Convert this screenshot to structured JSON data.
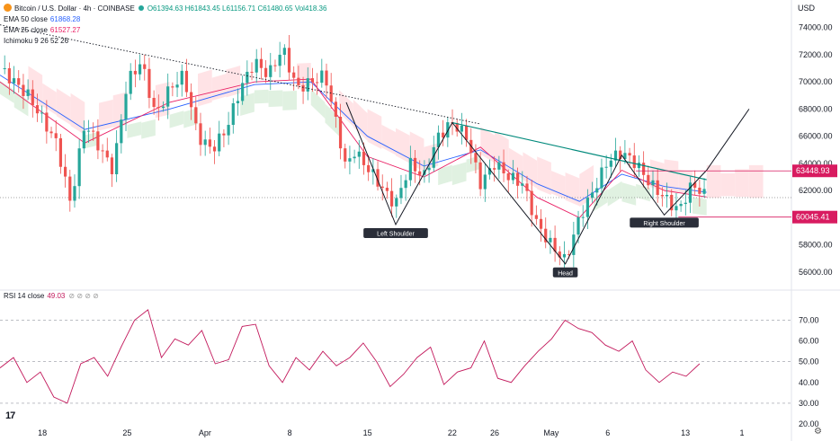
{
  "header": {
    "symbol": "Bitcoin / U.S. Dollar · 4h · COINBASE",
    "ohlc": "O61394.63 H61843.45 L61156.71 C61480.65 Vol418.36",
    "ema50_label": "EMA 50 close",
    "ema50_value": "61868.28",
    "ema25_label": "EMA 25 close",
    "ema25_value": "61527.27",
    "ichimoku_label": "Ichimoku 9 26 52 26",
    "rsi_label": "RSI 14 close",
    "rsi_value": "49.03",
    "currency": "USD"
  },
  "colors": {
    "up": "#26a69a",
    "down": "#ef5350",
    "ema50": "#2962ff",
    "ema25": "#e91e63",
    "cloud_bull": "#c8e6c9",
    "cloud_bear": "#ffcdd2",
    "rsi": "#c2185b",
    "resistance": "#d81b60",
    "support": "#d81b60",
    "pattern": "#131722",
    "neckline": "#00897b"
  },
  "chart_data": [
    {
      "type": "candlestick",
      "title": "Bitcoin / U.S. Dollar · 4h · COINBASE",
      "y_axis": {
        "min": 55000,
        "max": 75500,
        "ticks": [
          56000,
          58000,
          60000,
          62000,
          64000,
          66000,
          68000,
          70000,
          72000,
          74000
        ]
      },
      "x_axis": {
        "labels": [
          "18",
          "25",
          "Apr",
          "8",
          "15",
          "22",
          "26",
          "May",
          "6",
          "13",
          "1"
        ]
      },
      "price_path": [
        [
          0,
          71000
        ],
        [
          2,
          69000
        ],
        [
          4,
          65500
        ],
        [
          5,
          61000
        ],
        [
          6,
          67000
        ],
        [
          8,
          63500
        ],
        [
          9,
          70000
        ],
        [
          10,
          71500
        ],
        [
          11,
          67500
        ],
        [
          12,
          69500
        ],
        [
          13,
          70500
        ],
        [
          14,
          66000
        ],
        [
          15,
          65000
        ],
        [
          16,
          66500
        ],
        [
          17,
          69500
        ],
        [
          18,
          71500
        ],
        [
          19,
          70500
        ],
        [
          20,
          72500
        ],
        [
          21,
          69500
        ],
        [
          23,
          70500
        ],
        [
          24,
          66000
        ],
        [
          24.5,
          63500
        ],
        [
          25,
          65000
        ],
        [
          26.5,
          63000
        ],
        [
          27.5,
          61500
        ],
        [
          28,
          61000
        ],
        [
          29,
          64000
        ],
        [
          30,
          63000
        ],
        [
          31,
          66000
        ],
        [
          32,
          67000
        ],
        [
          33,
          66000
        ],
        [
          34,
          62500
        ],
        [
          35,
          64000
        ],
        [
          36,
          63000
        ],
        [
          37,
          62500
        ],
        [
          38,
          59500
        ],
        [
          39,
          58000
        ],
        [
          40,
          56800
        ],
        [
          41,
          60000
        ],
        [
          42,
          62000
        ],
        [
          43,
          64200
        ],
        [
          44,
          64800
        ],
        [
          45,
          64000
        ],
        [
          46,
          62500
        ],
        [
          47,
          61500
        ],
        [
          48,
          60500
        ],
        [
          49,
          62500
        ],
        [
          50,
          61500
        ]
      ],
      "ema25": [
        [
          0,
          70000
        ],
        [
          6,
          65500
        ],
        [
          12,
          68500
        ],
        [
          18,
          70000
        ],
        [
          22,
          70200
        ],
        [
          26,
          64500
        ],
        [
          30,
          63000
        ],
        [
          34,
          65200
        ],
        [
          38,
          61500
        ],
        [
          41,
          60000
        ],
        [
          44,
          63500
        ],
        [
          47,
          62000
        ],
        [
          50,
          61527
        ]
      ],
      "ema50": [
        [
          0,
          70500
        ],
        [
          6,
          66500
        ],
        [
          12,
          68000
        ],
        [
          18,
          69800
        ],
        [
          22,
          70000
        ],
        [
          26,
          66000
        ],
        [
          30,
          63800
        ],
        [
          34,
          65000
        ],
        [
          38,
          62500
        ],
        [
          41,
          61200
        ],
        [
          44,
          63200
        ],
        [
          47,
          62300
        ],
        [
          50,
          61868
        ]
      ],
      "annotations": {
        "trendline": [
          [
            0,
            74200
          ],
          [
            34,
            66900
          ]
        ],
        "neckline": [
          [
            32,
            67000
          ],
          [
            50,
            62800
          ]
        ],
        "pattern_path": [
          [
            24.5,
            68500
          ],
          [
            28,
            59500
          ],
          [
            32,
            67000
          ],
          [
            40,
            56600
          ],
          [
            44,
            64600
          ],
          [
            47,
            60200
          ],
          [
            50,
            63500
          ],
          [
            53,
            68000
          ]
        ],
        "resistance": 63448.93,
        "support": 60045.41,
        "resistance_label": "63448.93",
        "support_label": "60045.41",
        "left_shoulder": "Left Shoulder",
        "head": "Head",
        "right_shoulder": "Right Shoulder"
      }
    },
    {
      "type": "line",
      "title": "RSI 14 close",
      "y_axis": {
        "min": 20,
        "max": 78,
        "ticks": [
          20,
          30,
          40,
          50,
          60,
          70
        ]
      },
      "levels": [
        70,
        50,
        30
      ],
      "values": [
        47,
        52,
        40,
        45,
        33,
        30,
        49,
        52,
        43,
        57,
        70,
        75,
        52,
        61,
        58,
        65,
        49,
        51,
        67,
        68,
        48,
        40,
        52,
        46,
        55,
        48,
        52,
        59,
        50,
        38,
        44,
        52,
        57,
        39,
        45,
        47,
        60,
        42,
        40,
        48,
        55,
        61,
        70,
        66,
        64,
        58,
        55,
        60,
        46,
        40,
        45,
        43,
        49
      ]
    }
  ]
}
